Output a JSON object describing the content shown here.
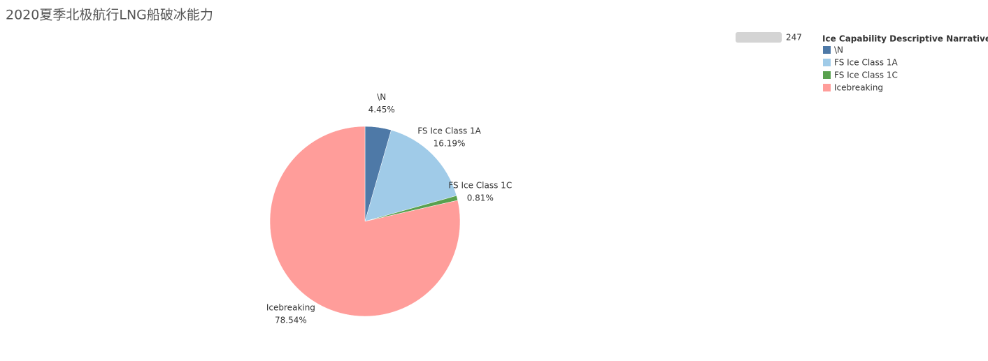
{
  "chart_data": {
    "type": "pie",
    "title": "2020夏季北极航行LNG船破冰能力",
    "legend_title": "Ice Capability Descriptive Narrative",
    "legend_position": "top-right",
    "size_legend": 247,
    "categories": [
      "\\N",
      "FS Ice Class 1A",
      "FS Ice Class 1C",
      "Icebreaking"
    ],
    "values": [
      4.45,
      16.19,
      0.81,
      78.54
    ],
    "value_labels": [
      "4.45%",
      "16.19%",
      "0.81%",
      "78.54%"
    ],
    "colors": [
      "#4e79a7",
      "#a0cbe8",
      "#59a14f",
      "#ff9d9a"
    ]
  }
}
